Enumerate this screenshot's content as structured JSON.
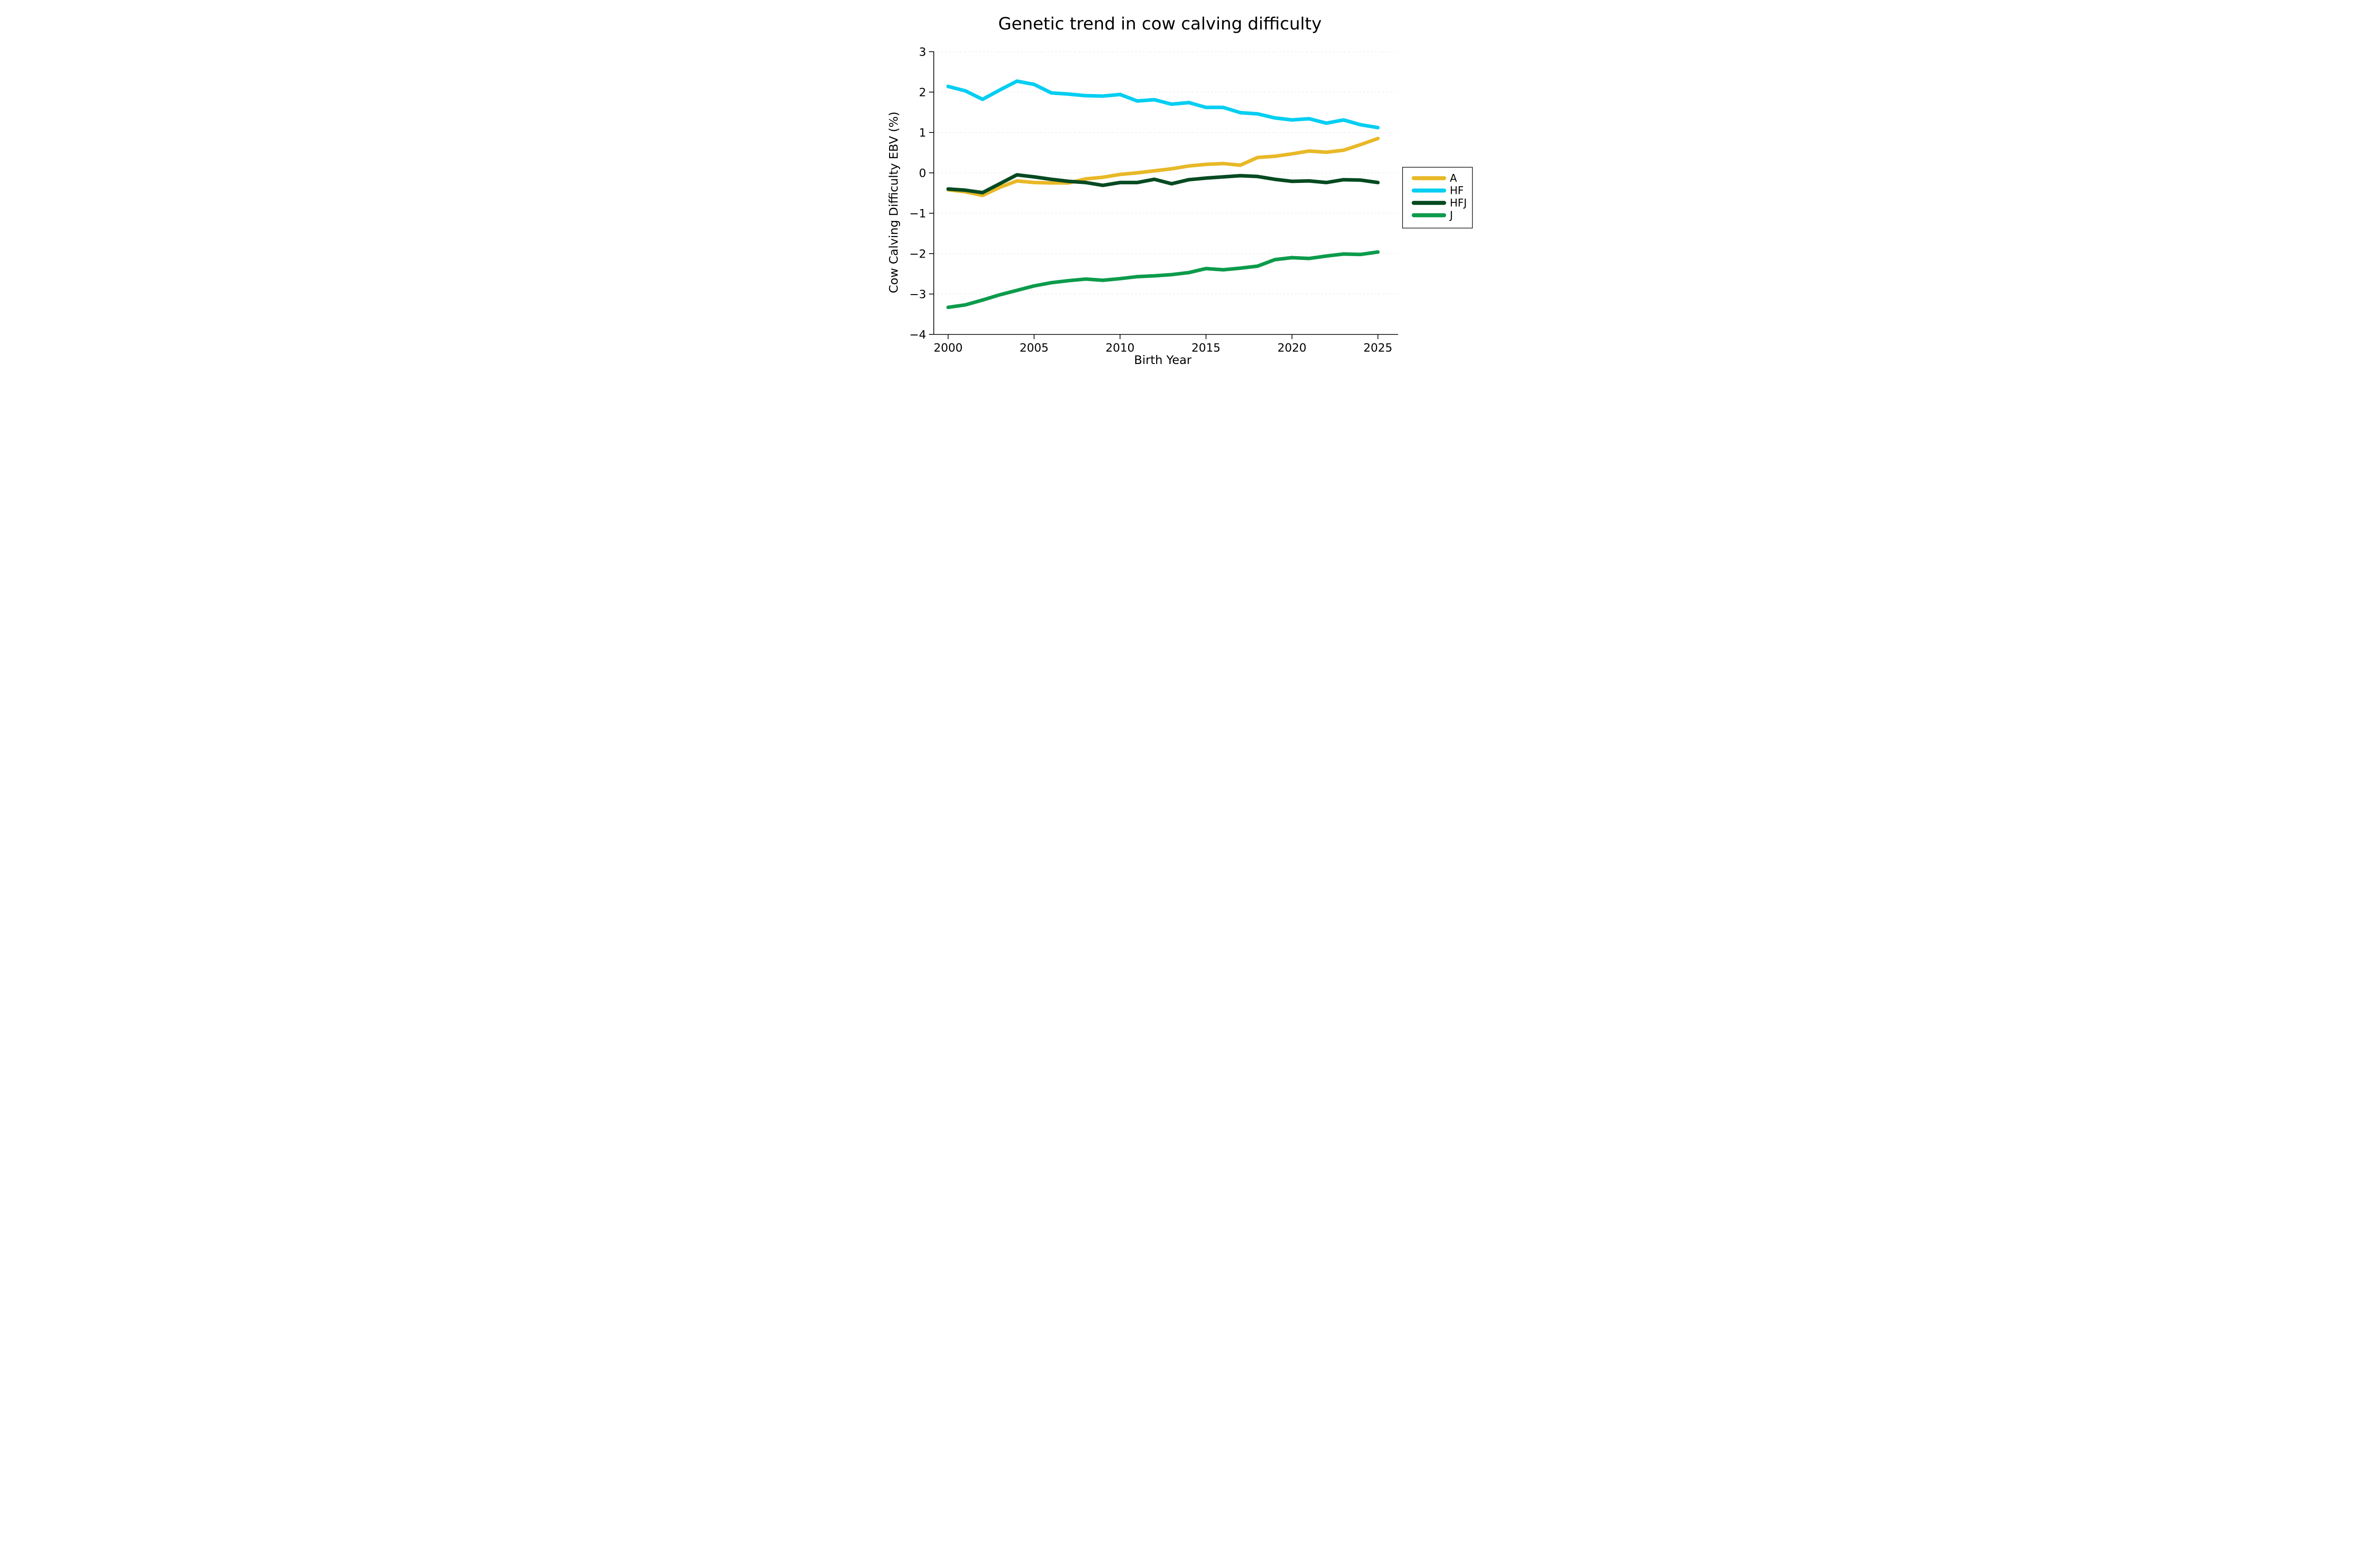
{
  "chart_data": {
    "type": "line",
    "title": "Genetic trend in cow calving difficulty",
    "xlabel": "Birth Year",
    "ylabel": "Cow Calving Difficulty EBV (%)",
    "x": [
      2000,
      2001,
      2002,
      2003,
      2004,
      2005,
      2006,
      2007,
      2008,
      2009,
      2010,
      2011,
      2012,
      2013,
      2014,
      2015,
      2016,
      2017,
      2018,
      2019,
      2020,
      2021,
      2022,
      2023,
      2024,
      2025
    ],
    "series": [
      {
        "name": "A",
        "color": "#E8B827",
        "values": [
          -0.42,
          -0.47,
          -0.56,
          -0.36,
          -0.2,
          -0.24,
          -0.25,
          -0.25,
          -0.15,
          -0.11,
          -0.04,
          0.0,
          0.05,
          0.1,
          0.17,
          0.21,
          0.23,
          0.19,
          0.38,
          0.41,
          0.47,
          0.54,
          0.51,
          0.56,
          0.7,
          0.85
        ]
      },
      {
        "name": "HF",
        "color": "#00CEF2",
        "values": [
          2.14,
          2.03,
          1.82,
          2.05,
          2.27,
          2.19,
          1.98,
          1.95,
          1.91,
          1.9,
          1.94,
          1.78,
          1.81,
          1.7,
          1.74,
          1.62,
          1.62,
          1.49,
          1.46,
          1.36,
          1.31,
          1.34,
          1.23,
          1.31,
          1.19,
          1.12
        ]
      },
      {
        "name": "HFJ",
        "color": "#054A21",
        "values": [
          -0.4,
          -0.43,
          -0.49,
          -0.27,
          -0.05,
          -0.1,
          -0.16,
          -0.21,
          -0.24,
          -0.31,
          -0.24,
          -0.24,
          -0.16,
          -0.27,
          -0.17,
          -0.13,
          -0.1,
          -0.07,
          -0.09,
          -0.16,
          -0.21,
          -0.2,
          -0.24,
          -0.17,
          -0.18,
          -0.24
        ]
      },
      {
        "name": "J",
        "color": "#0C9B4B",
        "values": [
          -3.33,
          -3.27,
          -3.15,
          -3.02,
          -2.91,
          -2.8,
          -2.72,
          -2.67,
          -2.63,
          -2.66,
          -2.62,
          -2.57,
          -2.55,
          -2.52,
          -2.47,
          -2.37,
          -2.4,
          -2.36,
          -2.31,
          -2.15,
          -2.1,
          -2.12,
          -2.06,
          -2.01,
          -2.02,
          -1.96
        ]
      }
    ],
    "xticks": [
      2000,
      2005,
      2010,
      2015,
      2020,
      2025
    ],
    "yticks": [
      3,
      2,
      1,
      0,
      -1,
      -2,
      -3,
      -4
    ],
    "ylim": [
      -4,
      3
    ],
    "grid": "horizontal-dashed",
    "grid_color": "#e7e7e7",
    "axis_color": "#000000",
    "background_color": "#ffffff",
    "legend_position": "right-outside",
    "legend_entries": [
      "A",
      "HF",
      "HFJ",
      "J"
    ]
  }
}
